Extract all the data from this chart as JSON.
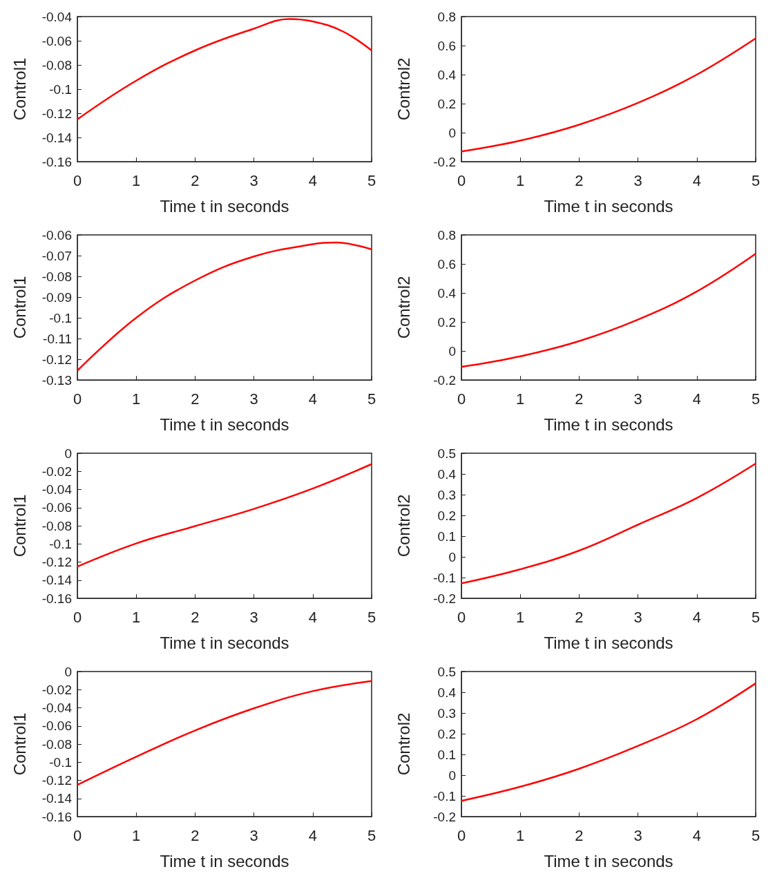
{
  "chart_data": [
    {
      "type": "line",
      "xlabel": "Time t in seconds",
      "ylabel": "Control1",
      "marker": "none",
      "xlim": [
        0,
        5
      ],
      "xticks": [
        0,
        1,
        2,
        3,
        4,
        5
      ],
      "ylim": [
        -0.16,
        -0.04
      ],
      "yticks": [
        -0.16,
        -0.14,
        -0.12,
        -0.1,
        -0.08,
        -0.06,
        -0.04
      ],
      "x": [
        0,
        1,
        2,
        3,
        3.6,
        4,
        4.5,
        5
      ],
      "series": [
        {
          "color": "#ff0000",
          "values": [
            -0.125,
            -0.093,
            -0.068,
            -0.05,
            -0.042,
            -0.044,
            -0.052,
            -0.068
          ]
        }
      ]
    },
    {
      "type": "line",
      "xlabel": "Time t in seconds",
      "ylabel": "Control2",
      "marker": "none",
      "xlim": [
        0,
        5
      ],
      "xticks": [
        0,
        1,
        2,
        3,
        4,
        5
      ],
      "ylim": [
        -0.2,
        0.8
      ],
      "yticks": [
        -0.2,
        0,
        0.2,
        0.4,
        0.6,
        0.8
      ],
      "x": [
        0,
        1,
        2,
        3,
        4,
        5
      ],
      "series": [
        {
          "color": "#ff0000",
          "values": [
            -0.13,
            -0.055,
            0.055,
            0.205,
            0.4,
            0.65
          ]
        }
      ]
    },
    {
      "type": "line",
      "xlabel": "Time t in seconds",
      "ylabel": "Control1",
      "marker": "none",
      "xlim": [
        0,
        5
      ],
      "xticks": [
        0,
        1,
        2,
        3,
        4,
        5
      ],
      "ylim": [
        -0.13,
        -0.06
      ],
      "yticks": [
        -0.13,
        -0.12,
        -0.11,
        -0.1,
        -0.09,
        -0.08,
        -0.07,
        -0.06
      ],
      "x": [
        0,
        1,
        2,
        3,
        4,
        4.4,
        5
      ],
      "series": [
        {
          "color": "#ff0000",
          "values": [
            -0.1255,
            -0.1,
            -0.082,
            -0.0704,
            -0.0645,
            -0.0637,
            -0.067
          ]
        }
      ]
    },
    {
      "type": "line",
      "xlabel": "Time t in seconds",
      "ylabel": "Control2",
      "marker": "none",
      "xlim": [
        0,
        5
      ],
      "xticks": [
        0,
        1,
        2,
        3,
        4,
        5
      ],
      "ylim": [
        -0.2,
        0.8
      ],
      "yticks": [
        -0.2,
        0,
        0.2,
        0.4,
        0.6,
        0.8
      ],
      "x": [
        0,
        1,
        2,
        3,
        4,
        5
      ],
      "series": [
        {
          "color": "#ff0000",
          "values": [
            -0.11,
            -0.037,
            0.068,
            0.216,
            0.41,
            0.67
          ]
        }
      ]
    },
    {
      "type": "line",
      "xlabel": "Time t in seconds",
      "ylabel": "Control1",
      "marker": "none",
      "xlim": [
        0,
        5
      ],
      "xticks": [
        0,
        1,
        2,
        3,
        4,
        5
      ],
      "ylim": [
        -0.16,
        0
      ],
      "yticks": [
        -0.16,
        -0.14,
        -0.12,
        -0.1,
        -0.08,
        -0.06,
        -0.04,
        -0.02,
        0
      ],
      "x": [
        0,
        1,
        2,
        3,
        4,
        5
      ],
      "series": [
        {
          "color": "#ff0000",
          "values": [
            -0.125,
            -0.0995,
            -0.0804,
            -0.0614,
            -0.039,
            -0.012
          ]
        }
      ]
    },
    {
      "type": "line",
      "xlabel": "Time t in seconds",
      "ylabel": "Control2",
      "marker": "none",
      "xlim": [
        0,
        5
      ],
      "xticks": [
        0,
        1,
        2,
        3,
        4,
        5
      ],
      "ylim": [
        -0.2,
        0.5
      ],
      "yticks": [
        -0.2,
        -0.1,
        0,
        0.1,
        0.2,
        0.3,
        0.4,
        0.5
      ],
      "x": [
        0,
        1,
        2,
        3,
        4,
        5
      ],
      "series": [
        {
          "color": "#ff0000",
          "values": [
            -0.128,
            -0.06,
            0.03,
            0.155,
            0.284,
            0.45
          ]
        }
      ]
    },
    {
      "type": "line",
      "xlabel": "Time t in seconds",
      "ylabel": "Control1",
      "marker": "none",
      "xlim": [
        0,
        5
      ],
      "xticks": [
        0,
        1,
        2,
        3,
        4,
        5
      ],
      "ylim": [
        -0.16,
        0
      ],
      "yticks": [
        -0.16,
        -0.14,
        -0.12,
        -0.1,
        -0.08,
        -0.06,
        -0.04,
        -0.02,
        0
      ],
      "x": [
        0,
        1,
        2,
        3,
        4,
        5
      ],
      "series": [
        {
          "color": "#ff0000",
          "values": [
            -0.125,
            -0.094,
            -0.065,
            -0.0406,
            -0.0216,
            -0.0104
          ]
        }
      ]
    },
    {
      "type": "line",
      "xlabel": "Time t in seconds",
      "ylabel": "Control2",
      "marker": "none",
      "xlim": [
        0,
        5
      ],
      "xticks": [
        0,
        1,
        2,
        3,
        4,
        5
      ],
      "ylim": [
        -0.2,
        0.5
      ],
      "yticks": [
        -0.2,
        -0.1,
        0,
        0.1,
        0.2,
        0.3,
        0.4,
        0.5
      ],
      "x": [
        0,
        1,
        2,
        3,
        4,
        5
      ],
      "series": [
        {
          "color": "#ff0000",
          "values": [
            -0.124,
            -0.056,
            0.031,
            0.141,
            0.27,
            0.443
          ]
        }
      ]
    }
  ]
}
